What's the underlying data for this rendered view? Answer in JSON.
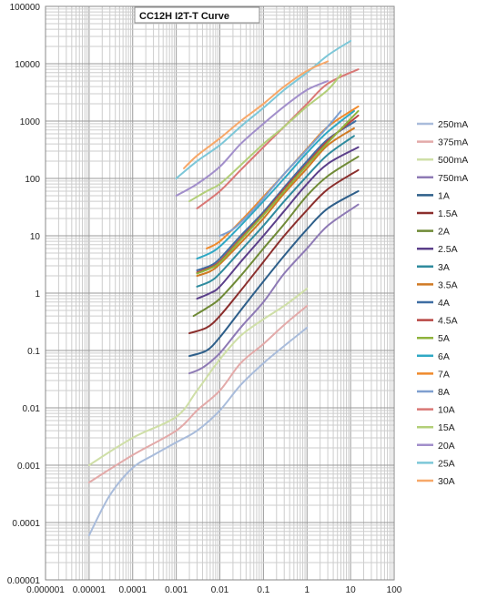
{
  "chart_data": {
    "type": "line",
    "title": "CC12H I2T-T Curve",
    "x_scale": "log",
    "y_scale": "log",
    "xlim": [
      1e-06,
      100
    ],
    "ylim": [
      1e-05,
      100000
    ],
    "grid": true,
    "legend_position": "right",
    "x_tick_labels": [
      "0.000001",
      "0.00001",
      "0.0001",
      "0.001",
      "0.01",
      "0.1",
      "1",
      "10",
      "100"
    ],
    "y_tick_labels": [
      "0.00001",
      "0.0001",
      "0.001",
      "0.01",
      "0.1",
      "1",
      "10",
      "100",
      "1000",
      "10000",
      "100000"
    ],
    "series": [
      {
        "name": "250mA",
        "color": "#a9bcdb",
        "points": [
          [
            1e-05,
            6e-05
          ],
          [
            3e-05,
            0.0003
          ],
          [
            0.0001,
            0.0009
          ],
          [
            0.0003,
            0.0015
          ],
          [
            0.001,
            0.0025
          ],
          [
            0.003,
            0.004
          ],
          [
            0.01,
            0.009
          ],
          [
            0.03,
            0.025
          ],
          [
            0.1,
            0.06
          ],
          [
            0.3,
            0.12
          ],
          [
            1,
            0.25
          ]
        ]
      },
      {
        "name": "375mA",
        "color": "#e3aaa9",
        "points": [
          [
            1e-05,
            0.0005
          ],
          [
            0.0001,
            0.0015
          ],
          [
            0.001,
            0.004
          ],
          [
            0.003,
            0.009
          ],
          [
            0.01,
            0.02
          ],
          [
            0.03,
            0.06
          ],
          [
            0.1,
            0.13
          ],
          [
            0.3,
            0.28
          ],
          [
            1,
            0.6
          ]
        ]
      },
      {
        "name": "500mA",
        "color": "#cfdfa7",
        "points": [
          [
            1e-05,
            0.001
          ],
          [
            0.0001,
            0.003
          ],
          [
            0.001,
            0.007
          ],
          [
            0.003,
            0.02
          ],
          [
            0.01,
            0.07
          ],
          [
            0.03,
            0.18
          ],
          [
            0.1,
            0.35
          ],
          [
            0.3,
            0.6
          ],
          [
            1,
            1.2
          ]
        ]
      },
      {
        "name": "750mA",
        "color": "#8e7ab5",
        "points": [
          [
            0.002,
            0.04
          ],
          [
            0.004,
            0.05
          ],
          [
            0.01,
            0.09
          ],
          [
            0.03,
            0.25
          ],
          [
            0.1,
            0.7
          ],
          [
            0.3,
            2.2
          ],
          [
            1,
            6
          ],
          [
            3,
            15
          ],
          [
            15,
            35
          ]
        ]
      },
      {
        "name": "1A",
        "color": "#2e5f8a",
        "points": [
          [
            0.002,
            0.08
          ],
          [
            0.005,
            0.1
          ],
          [
            0.01,
            0.17
          ],
          [
            0.03,
            0.5
          ],
          [
            0.1,
            1.6
          ],
          [
            0.3,
            4.5
          ],
          [
            1,
            13
          ],
          [
            3,
            30
          ],
          [
            15,
            60
          ]
        ]
      },
      {
        "name": "1.5A",
        "color": "#8b2f2d",
        "points": [
          [
            0.002,
            0.2
          ],
          [
            0.005,
            0.25
          ],
          [
            0.01,
            0.4
          ],
          [
            0.03,
            1.1
          ],
          [
            0.1,
            3.5
          ],
          [
            0.3,
            10
          ],
          [
            1,
            28
          ],
          [
            3,
            65
          ],
          [
            15,
            140
          ]
        ]
      },
      {
        "name": "2A",
        "color": "#6f8a36",
        "points": [
          [
            0.0025,
            0.4
          ],
          [
            0.005,
            0.55
          ],
          [
            0.01,
            0.8
          ],
          [
            0.03,
            2
          ],
          [
            0.1,
            6
          ],
          [
            0.3,
            16
          ],
          [
            1,
            50
          ],
          [
            3,
            110
          ],
          [
            15,
            240
          ]
        ]
      },
      {
        "name": "2.5A",
        "color": "#5b3f8a",
        "points": [
          [
            0.003,
            0.8
          ],
          [
            0.006,
            1
          ],
          [
            0.01,
            1.3
          ],
          [
            0.03,
            3.5
          ],
          [
            0.1,
            10
          ],
          [
            0.3,
            27
          ],
          [
            1,
            80
          ],
          [
            3,
            180
          ],
          [
            15,
            350
          ]
        ]
      },
      {
        "name": "3A",
        "color": "#2f8b9e",
        "points": [
          [
            0.003,
            1.3
          ],
          [
            0.006,
            1.6
          ],
          [
            0.01,
            2.2
          ],
          [
            0.03,
            5.5
          ],
          [
            0.1,
            15
          ],
          [
            0.3,
            40
          ],
          [
            1,
            110
          ],
          [
            3,
            260
          ],
          [
            12,
            550
          ]
        ]
      },
      {
        "name": "3.5A",
        "color": "#d07a24",
        "points": [
          [
            0.003,
            2
          ],
          [
            0.006,
            2.4
          ],
          [
            0.01,
            3.2
          ],
          [
            0.03,
            7.5
          ],
          [
            0.1,
            20
          ],
          [
            0.3,
            55
          ],
          [
            1,
            150
          ],
          [
            3,
            380
          ],
          [
            12,
            750
          ]
        ]
      },
      {
        "name": "4A",
        "color": "#3f6ea3",
        "points": [
          [
            0.003,
            2.5
          ],
          [
            0.006,
            3
          ],
          [
            0.01,
            4
          ],
          [
            0.03,
            10
          ],
          [
            0.1,
            26
          ],
          [
            0.3,
            70
          ],
          [
            1,
            200
          ],
          [
            3,
            480
          ],
          [
            13,
            1000
          ]
        ]
      },
      {
        "name": "4.5A",
        "color": "#b84744",
        "points": [
          [
            0.003,
            2.3
          ],
          [
            0.006,
            2.8
          ],
          [
            0.01,
            3.6
          ],
          [
            0.03,
            9
          ],
          [
            0.1,
            24
          ],
          [
            0.3,
            65
          ],
          [
            1,
            180
          ],
          [
            3,
            450
          ],
          [
            15,
            1250
          ]
        ]
      },
      {
        "name": "5A",
        "color": "#8fb33d",
        "points": [
          [
            0.003,
            2.2
          ],
          [
            0.006,
            2.7
          ],
          [
            0.01,
            3.4
          ],
          [
            0.03,
            8.5
          ],
          [
            0.1,
            23
          ],
          [
            0.3,
            60
          ],
          [
            1,
            170
          ],
          [
            3,
            420
          ],
          [
            15,
            1500
          ]
        ]
      },
      {
        "name": "6A",
        "color": "#2fa8c4",
        "points": [
          [
            0.003,
            4
          ],
          [
            0.006,
            5
          ],
          [
            0.01,
            6.5
          ],
          [
            0.03,
            15
          ],
          [
            0.1,
            40
          ],
          [
            0.3,
            100
          ],
          [
            1,
            280
          ],
          [
            3,
            650
          ],
          [
            12,
            1500
          ]
        ]
      },
      {
        "name": "7A",
        "color": "#ef8a2c",
        "points": [
          [
            0.005,
            6
          ],
          [
            0.01,
            8
          ],
          [
            0.03,
            18
          ],
          [
            0.1,
            48
          ],
          [
            0.3,
            120
          ],
          [
            1,
            330
          ],
          [
            3,
            800
          ],
          [
            15,
            1800
          ]
        ]
      },
      {
        "name": "8A",
        "color": "#7f9fcf",
        "points": [
          [
            0.01,
            10
          ],
          [
            0.02,
            13
          ],
          [
            0.05,
            25
          ],
          [
            0.1,
            45
          ],
          [
            0.3,
            120
          ],
          [
            1,
            320
          ],
          [
            3,
            800
          ],
          [
            6,
            1500
          ]
        ]
      },
      {
        "name": "10A",
        "color": "#d97775",
        "points": [
          [
            0.003,
            30
          ],
          [
            0.01,
            60
          ],
          [
            0.03,
            140
          ],
          [
            0.1,
            350
          ],
          [
            0.3,
            800
          ],
          [
            1,
            2000
          ],
          [
            3,
            4500
          ],
          [
            15,
            8000
          ]
        ]
      },
      {
        "name": "15A",
        "color": "#b3cf79",
        "points": [
          [
            0.002,
            40
          ],
          [
            0.005,
            60
          ],
          [
            0.01,
            80
          ],
          [
            0.03,
            170
          ],
          [
            0.1,
            400
          ],
          [
            0.3,
            800
          ],
          [
            1,
            1800
          ],
          [
            3,
            3500
          ],
          [
            6,
            6500
          ]
        ]
      },
      {
        "name": "20A",
        "color": "#a28fcb",
        "points": [
          [
            0.001,
            50
          ],
          [
            0.003,
            80
          ],
          [
            0.01,
            160
          ],
          [
            0.03,
            400
          ],
          [
            0.1,
            900
          ],
          [
            0.3,
            1800
          ],
          [
            1,
            3500
          ],
          [
            3,
            5000
          ]
        ]
      },
      {
        "name": "25A",
        "color": "#7dc7d8",
        "points": [
          [
            0.001,
            100
          ],
          [
            0.003,
            200
          ],
          [
            0.01,
            380
          ],
          [
            0.03,
            800
          ],
          [
            0.1,
            1700
          ],
          [
            0.3,
            3500
          ],
          [
            1,
            7000
          ],
          [
            3,
            14000
          ],
          [
            10,
            25000
          ]
        ]
      },
      {
        "name": "30A",
        "color": "#f7a869",
        "points": [
          [
            0.0015,
            150
          ],
          [
            0.003,
            250
          ],
          [
            0.01,
            500
          ],
          [
            0.03,
            1000
          ],
          [
            0.1,
            2000
          ],
          [
            0.3,
            4000
          ],
          [
            1,
            7500
          ],
          [
            3,
            11000
          ]
        ]
      }
    ]
  }
}
